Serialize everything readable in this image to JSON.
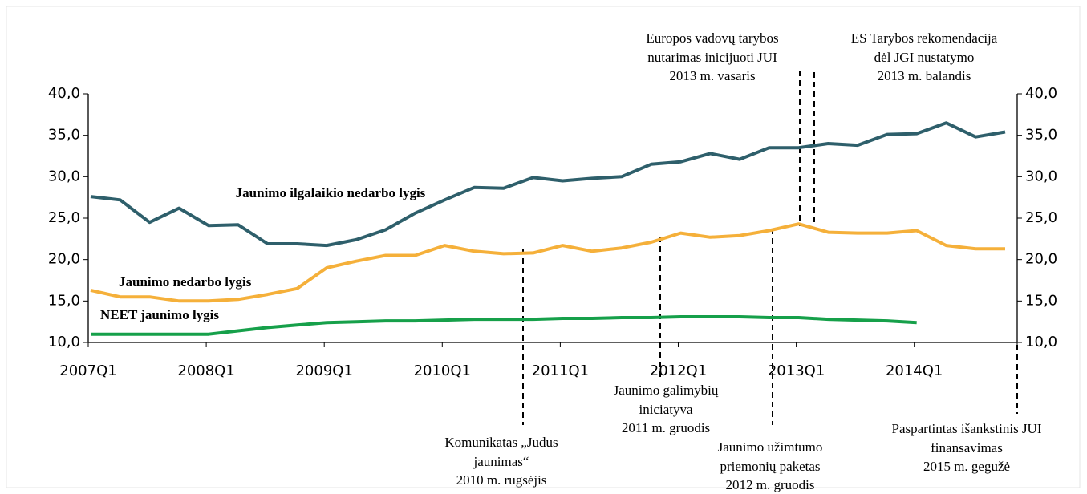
{
  "chart_data": {
    "type": "line",
    "categories": [
      "2007Q1",
      null,
      null,
      null,
      "2008Q1",
      null,
      null,
      null,
      "2009Q1",
      null,
      null,
      null,
      "2010Q1",
      null,
      null,
      null,
      "2011Q1",
      null,
      null,
      null,
      "2012Q1",
      null,
      null,
      null,
      "2013Q1",
      null,
      null,
      null,
      "2014Q1",
      null,
      null,
      null
    ],
    "series": [
      {
        "name": "Jaunimo ilgalaikio nedarbo lygis",
        "color": "#2e5f6b",
        "values": [
          27.6,
          27.2,
          24.5,
          26.2,
          24.1,
          24.2,
          21.9,
          21.9,
          21.7,
          22.4,
          23.6,
          25.6,
          27.2,
          28.7,
          28.6,
          29.9,
          29.5,
          29.8,
          30.0,
          31.5,
          31.8,
          32.8,
          32.1,
          33.5,
          33.5,
          34.0,
          33.8,
          35.1,
          35.2,
          36.5,
          34.8,
          35.4
        ]
      },
      {
        "name": "Jaunimo nedarbo lygis",
        "color": "#f5b03a",
        "values": [
          16.3,
          15.5,
          15.5,
          15.0,
          15.0,
          15.2,
          15.8,
          16.5,
          19.0,
          19.8,
          20.5,
          20.5,
          21.7,
          21.0,
          20.7,
          20.8,
          21.7,
          21.0,
          21.4,
          22.1,
          23.2,
          22.7,
          22.9,
          23.5,
          24.3,
          23.3,
          23.2,
          23.2,
          23.5,
          21.7,
          21.3,
          21.3
        ]
      },
      {
        "name": "NEET jaunimo lygis",
        "color": "#16a04a",
        "values": [
          11.0,
          11.0,
          11.0,
          11.0,
          11.0,
          11.4,
          11.8,
          12.1,
          12.4,
          12.5,
          12.6,
          12.6,
          12.7,
          12.8,
          12.8,
          12.8,
          12.9,
          12.9,
          13.0,
          13.0,
          13.1,
          13.1,
          13.1,
          13.0,
          13.0,
          12.8,
          12.7,
          12.6,
          12.4,
          null,
          null,
          null
        ]
      }
    ],
    "ylim": [
      10,
      40
    ],
    "yticks": [
      {
        "value": 10,
        "label": "10,0"
      },
      {
        "value": 15,
        "label": "15,0"
      },
      {
        "value": 20,
        "label": "20,0"
      },
      {
        "value": 25,
        "label": "25,0"
      },
      {
        "value": 30,
        "label": "30,0"
      },
      {
        "value": 35,
        "label": "35,0"
      },
      {
        "value": 40,
        "label": "40,0"
      }
    ],
    "y2lim": [
      10,
      40
    ],
    "y2ticks": [
      {
        "value": 10,
        "label": "10,0"
      },
      {
        "value": 15,
        "label": "15,0"
      },
      {
        "value": 20,
        "label": "20,0"
      },
      {
        "value": 25,
        "label": "25,0"
      },
      {
        "value": 30,
        "label": "30,0"
      },
      {
        "value": 35,
        "label": "35,0"
      },
      {
        "value": 40,
        "label": "40,0"
      }
    ],
    "annotations": [
      [
        "Europos vadovų tarybos",
        "nutarimas inicijuoti JUI",
        "2013 m. vasaris"
      ],
      [
        "ES Tarybos rekomendacija",
        "dėl JGI nustatymo",
        "2013 m. balandis"
      ],
      [
        "Komunikatas „Judus",
        "jaunimas“",
        "2010 m. rugsėjis"
      ],
      [
        "Jaunimo galimybių",
        "iniciatyva",
        "2011 m. gruodis"
      ],
      [
        "Jaunimo užimtumo",
        "priemonių paketas",
        "2012 m. gruodis"
      ],
      [
        "Paspartintas išankstinis JUI",
        "finansavimas",
        "2015 m. gegužė"
      ]
    ]
  }
}
